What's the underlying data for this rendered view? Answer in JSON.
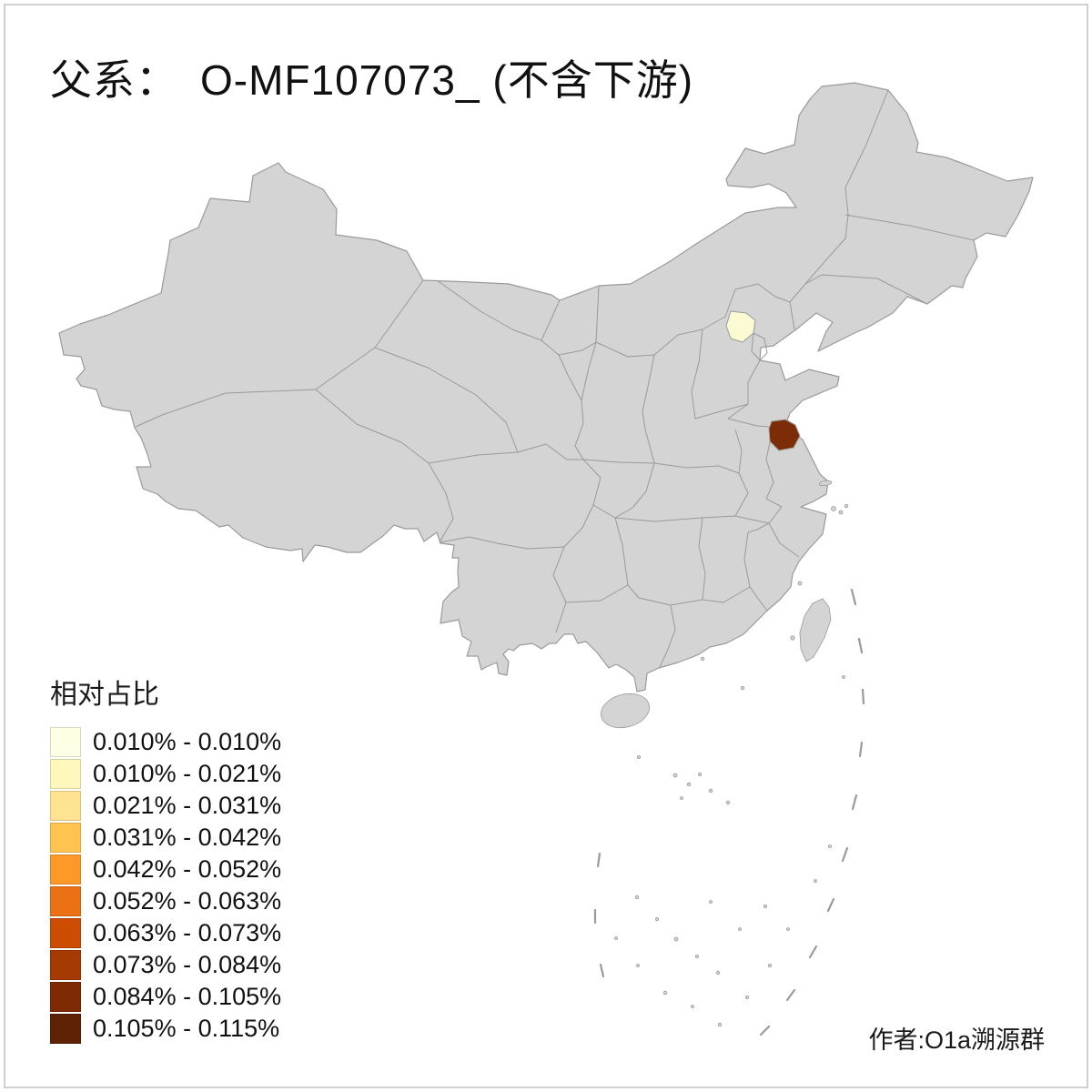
{
  "title": "父系：　O-MF107073_ (不含下游)",
  "legend": {
    "title": "相对占比",
    "items": [
      {
        "label": "0.010% - 0.010%",
        "color": "#FFFFE5"
      },
      {
        "label": "0.010% - 0.021%",
        "color": "#FFF7BC"
      },
      {
        "label": "0.021% - 0.031%",
        "color": "#FEE391"
      },
      {
        "label": "0.031% - 0.042%",
        "color": "#FEC44F"
      },
      {
        "label": "0.042% - 0.052%",
        "color": "#FE9929"
      },
      {
        "label": "0.052% - 0.063%",
        "color": "#EC7014"
      },
      {
        "label": "0.063% - 0.073%",
        "color": "#CC4C02"
      },
      {
        "label": "0.073% - 0.084%",
        "color": "#A63A03"
      },
      {
        "label": "0.084% - 0.105%",
        "color": "#7E2A04"
      },
      {
        "label": "0.105% - 0.115%",
        "color": "#602205"
      }
    ]
  },
  "attribution": "作者:O1a溯源群",
  "map": {
    "land_color": "#d4d4d4",
    "border_color": "#9a9a9a",
    "sea_color": "#ffffff",
    "highlighted_regions": [
      {
        "name": "beijing",
        "color": "#FCFAD2",
        "bin": "0.010% - 0.010%"
      },
      {
        "name": "north-jiangsu-coastal",
        "color": "#7C2D08",
        "bin": "0.105% - 0.115%"
      }
    ]
  }
}
